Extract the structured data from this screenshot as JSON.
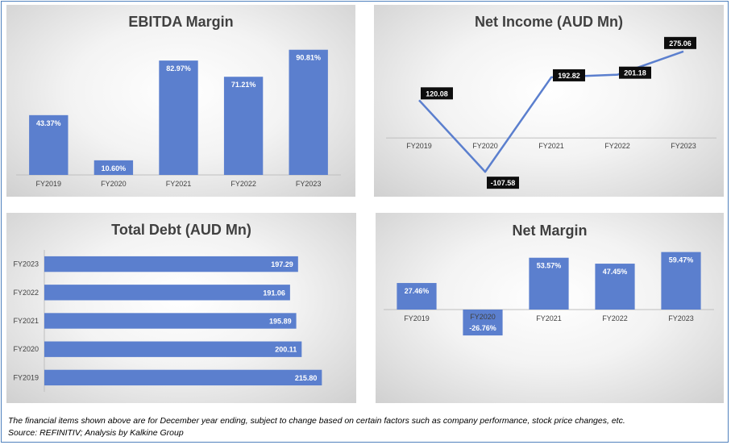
{
  "chart_data": [
    {
      "type": "bar",
      "title": "EBITDA Margin",
      "categories": [
        "FY2019",
        "FY2020",
        "FY2021",
        "FY2022",
        "FY2023"
      ],
      "values": [
        43.37,
        10.6,
        82.97,
        71.21,
        90.81
      ],
      "labels": [
        "43.37%",
        "10.60%",
        "82.97%",
        "71.21%",
        "90.81%"
      ],
      "ylim": [
        0,
        100
      ],
      "color": "#5b7fce"
    },
    {
      "type": "line",
      "title": "Net Income (AUD Mn)",
      "categories": [
        "FY2019",
        "FY2020",
        "FY2021",
        "FY2022",
        "FY2023"
      ],
      "values": [
        120.08,
        -107.58,
        192.82,
        201.18,
        275.06
      ],
      "labels": [
        "120.08",
        "-107.58",
        "192.82",
        "201.18",
        "275.06"
      ],
      "ylim": [
        -120,
        290
      ],
      "color": "#5b7fce"
    },
    {
      "type": "bar",
      "orientation": "horizontal",
      "title": "Total Debt (AUD Mn)",
      "categories": [
        "FY2023",
        "FY2022",
        "FY2021",
        "FY2020",
        "FY2019"
      ],
      "values": [
        197.29,
        191.06,
        195.89,
        200.11,
        215.8
      ],
      "labels": [
        "197.29",
        "191.06",
        "195.89",
        "200.11",
        "215.80"
      ],
      "xlim": [
        0,
        235
      ],
      "color": "#5b7fce"
    },
    {
      "type": "bar",
      "title": "Net Margin",
      "categories": [
        "FY2019",
        "FY2020",
        "FY2021",
        "FY2022",
        "FY2023"
      ],
      "values": [
        27.46,
        -26.76,
        53.57,
        47.45,
        59.47
      ],
      "labels": [
        "27.46%",
        "-26.76%",
        "53.57%",
        "47.45%",
        "59.47%"
      ],
      "ylim": [
        -30,
        65
      ],
      "color": "#5b7fce"
    }
  ],
  "footnote": {
    "line1": "The financial items shown above are for December year ending, subject to change based on certain factors such as company performance, stock price changes, etc.",
    "line2": "Source: REFINITIV; Analysis by Kalkine Group"
  }
}
